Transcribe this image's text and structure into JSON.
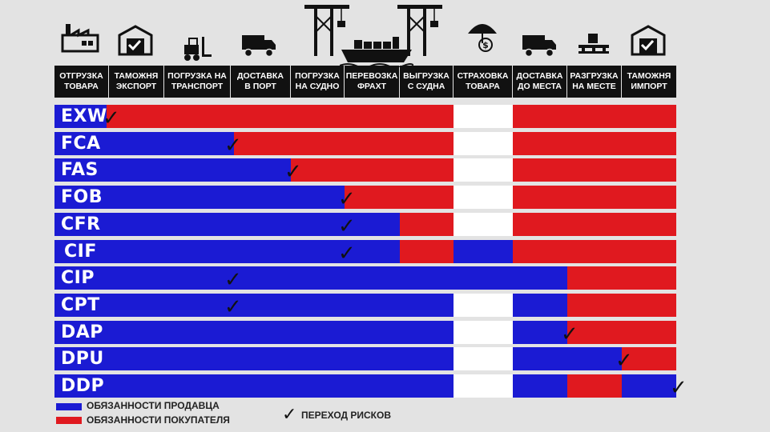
{
  "colors": {
    "seller": "#1b1bd3",
    "buyer": "#e0191f",
    "neutral": "#ffffff",
    "header_bg": "#111111",
    "background": "#e3e3e3"
  },
  "icons": [
    "factory-icon",
    "customs-warehouse-icon",
    "forklift-icon",
    "truck-icon",
    "port-crane-icon",
    "cargo-ship-icon",
    "port-crane-icon",
    "insurance-umbrella-icon",
    "truck-icon",
    "pallet-unloading-icon",
    "customs-warehouse-icon"
  ],
  "columns": [
    "ОТГРУЗКА\nТОВАРА",
    "ТАМОЖНЯ\nЭКСПОРТ",
    "ПОГРУЗКА НА\nТРАНСПОРТ",
    "ДОСТАВКА\nВ ПОРТ",
    "ПОГРУЗКА\nНА СУДНО",
    "ПЕРЕВОЗКА\nФРАХТ",
    "ВЫГРУЗКА\nС СУДНА",
    "СТРАХОВКА\nТОВАРА",
    "ДОСТАВКА\nДО МЕСТА",
    "РАЗГРУЗКА\nНА МЕСТЕ",
    "ТАМОЖНЯ\nИМПОРТ"
  ],
  "terms": [
    {
      "code": "EXW",
      "seller_until": 0.95,
      "insurance": "none",
      "risk_transfer_col": 1.0,
      "buyer_gap": false
    },
    {
      "code": "FCA",
      "seller_until": 3.05,
      "insurance": "none",
      "risk_transfer_col": 3.0
    },
    {
      "code": "FAS",
      "seller_until": 4.0,
      "insurance": "none",
      "risk_transfer_col": 4.0
    },
    {
      "code": "FOB",
      "seller_until": 5.0,
      "insurance": "none",
      "risk_transfer_col": 5.0
    },
    {
      "code": "CFR",
      "seller_until": 6.0,
      "insurance": "none",
      "risk_transfer_col": 5.0
    },
    {
      "code": "CIF",
      "seller_until": 6.0,
      "insurance": "seller",
      "risk_transfer_col": 5.0
    },
    {
      "code": "CIP",
      "seller_until": 9.0,
      "insurance": "seller",
      "risk_transfer_col": 3.0
    },
    {
      "code": "CPT",
      "seller_until": 9.0,
      "insurance": "none",
      "risk_transfer_col": 3.0
    },
    {
      "code": "DAP",
      "seller_until": 9.0,
      "insurance": "none",
      "risk_transfer_col": 9.0
    },
    {
      "code": "DPU",
      "seller_until": 10.0,
      "insurance": "none",
      "risk_transfer_col": 10.0
    },
    {
      "code": "DDP",
      "seller_until": 11.0,
      "insurance": "none",
      "risk_transfer_col": 11.0,
      "buyer_block": [
        9,
        10
      ]
    }
  ],
  "legend": {
    "seller": "ОБЯЗАННОСТИ ПРОДАВЦА",
    "buyer": "ОБЯЗАННОСТИ ПОКУПАТЕЛЯ",
    "risk": "ПЕРЕХОД РИСКОВ"
  },
  "tick_glyph": "✓"
}
